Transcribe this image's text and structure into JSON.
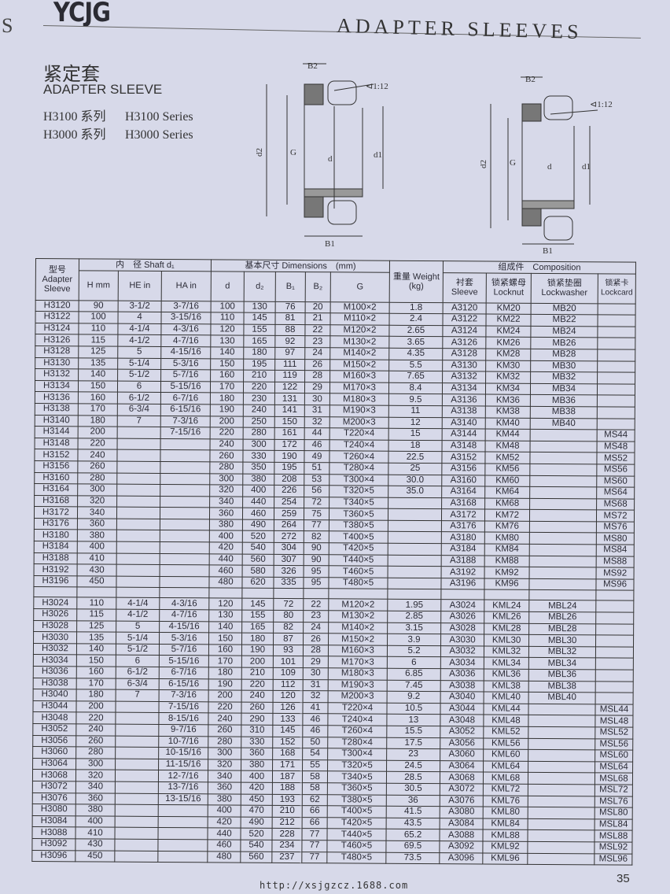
{
  "page": {
    "edge_letter": "S",
    "logo": "YCJG",
    "title": "ADAPTER SLEEVES",
    "cn_title": "紧定套",
    "en_title": "ADAPTER SLEEVE",
    "series": [
      {
        "cn": "H3100 系列",
        "en": "H3100 Series"
      },
      {
        "cn": "H3000 系列",
        "en": "H3000 Series"
      }
    ],
    "footer_url": "http://xsjgzcz.1688.com",
    "page_number": "35"
  },
  "diagram_labels": {
    "b2": "B2",
    "b1": "B1",
    "d2": "d2",
    "g": "G",
    "d": "d",
    "d1": "d1",
    "taper": "⊲1:12"
  },
  "table": {
    "headers": {
      "model": "型号 Adapter Sleeve",
      "shaft": "内　径 Shaft d₁",
      "h": "H mm",
      "he": "HE in",
      "ha": "HA in",
      "dimensions": "基本尺寸 Dimensions　(mm)",
      "d": "d",
      "d2": "d₂",
      "b1": "B₁",
      "b2": "B₂",
      "g": "G",
      "weight": "重量 Weight (kg)",
      "composition": "组成件　Composition",
      "sleeve": "衬套 Sleeve",
      "locknut": "锁紧螺母 Locknut",
      "lockwasher": "锁紧垫圈 Lockwasher",
      "lockcard": "锁紧卡 Lockcard"
    },
    "groups": [
      [
        [
          "H3120",
          "90",
          "3-1/2",
          "3-7/16",
          "100",
          "130",
          "76",
          "20",
          "M100×2",
          "1.8",
          "A3120",
          "KM20",
          "MB20",
          ""
        ],
        [
          "H3122",
          "100",
          "4",
          "3-15/16",
          "110",
          "145",
          "81",
          "21",
          "M110×2",
          "2.4",
          "A3122",
          "KM22",
          "MB22",
          ""
        ],
        [
          "H3124",
          "110",
          "4-1/4",
          "4-3/16",
          "120",
          "155",
          "88",
          "22",
          "M120×2",
          "2.65",
          "A3124",
          "KM24",
          "MB24",
          ""
        ],
        [
          "H3126",
          "115",
          "4-1/2",
          "4-7/16",
          "130",
          "165",
          "92",
          "23",
          "M130×2",
          "3.65",
          "A3126",
          "KM26",
          "MB26",
          ""
        ],
        [
          "H3128",
          "125",
          "5",
          "4-15/16",
          "140",
          "180",
          "97",
          "24",
          "M140×2",
          "4.35",
          "A3128",
          "KM28",
          "MB28",
          ""
        ],
        [
          "H3130",
          "135",
          "5-1/4",
          "5-3/16",
          "150",
          "195",
          "111",
          "26",
          "M150×2",
          "5.5",
          "A3130",
          "KM30",
          "MB30",
          ""
        ],
        [
          "H3132",
          "140",
          "5-1/2",
          "5-7/16",
          "160",
          "210",
          "119",
          "28",
          "M160×3",
          "7.65",
          "A3132",
          "KM32",
          "MB32",
          ""
        ],
        [
          "H3134",
          "150",
          "6",
          "5-15/16",
          "170",
          "220",
          "122",
          "29",
          "M170×3",
          "8.4",
          "A3134",
          "KM34",
          "MB34",
          ""
        ],
        [
          "H3136",
          "160",
          "6-1/2",
          "6-7/16",
          "180",
          "230",
          "131",
          "30",
          "M180×3",
          "9.5",
          "A3136",
          "KM36",
          "MB36",
          ""
        ],
        [
          "H3138",
          "170",
          "6-3/4",
          "6-15/16",
          "190",
          "240",
          "141",
          "31",
          "M190×3",
          "11",
          "A3138",
          "KM38",
          "MB38",
          ""
        ],
        [
          "H3140",
          "180",
          "7",
          "7-3/16",
          "200",
          "250",
          "150",
          "32",
          "M200×3",
          "12",
          "A3140",
          "KM40",
          "MB40",
          ""
        ],
        [
          "H3144",
          "200",
          "",
          "7-15/16",
          "220",
          "280",
          "161",
          "44",
          "T220×4",
          "15",
          "A3144",
          "KM44",
          "",
          "MS44"
        ],
        [
          "H3148",
          "220",
          "",
          "",
          "240",
          "300",
          "172",
          "46",
          "T240×4",
          "18",
          "A3148",
          "KM48",
          "",
          "MS48"
        ],
        [
          "H3152",
          "240",
          "",
          "",
          "260",
          "330",
          "190",
          "49",
          "T260×4",
          "22.5",
          "A3152",
          "KM52",
          "",
          "MS52"
        ],
        [
          "H3156",
          "260",
          "",
          "",
          "280",
          "350",
          "195",
          "51",
          "T280×4",
          "25",
          "A3156",
          "KM56",
          "",
          "MS56"
        ],
        [
          "H3160",
          "280",
          "",
          "",
          "300",
          "380",
          "208",
          "53",
          "T300×4",
          "30.0",
          "A3160",
          "KM60",
          "",
          "MS60"
        ],
        [
          "H3164",
          "300",
          "",
          "",
          "320",
          "400",
          "226",
          "56",
          "T320×5",
          "35.0",
          "A3164",
          "KM64",
          "",
          "MS64"
        ],
        [
          "H3168",
          "320",
          "",
          "",
          "340",
          "440",
          "254",
          "72",
          "T340×5",
          "",
          "A3168",
          "KM68",
          "",
          "MS68"
        ],
        [
          "H3172",
          "340",
          "",
          "",
          "360",
          "460",
          "259",
          "75",
          "T360×5",
          "",
          "A3172",
          "KM72",
          "",
          "MS72"
        ],
        [
          "H3176",
          "360",
          "",
          "",
          "380",
          "490",
          "264",
          "77",
          "T380×5",
          "",
          "A3176",
          "KM76",
          "",
          "MS76"
        ],
        [
          "H3180",
          "380",
          "",
          "",
          "400",
          "520",
          "272",
          "82",
          "T400×5",
          "",
          "A3180",
          "KM80",
          "",
          "MS80"
        ],
        [
          "H3184",
          "400",
          "",
          "",
          "420",
          "540",
          "304",
          "90",
          "T420×5",
          "",
          "A3184",
          "KM84",
          "",
          "MS84"
        ],
        [
          "H3188",
          "410",
          "",
          "",
          "440",
          "560",
          "307",
          "90",
          "T440×5",
          "",
          "A3188",
          "KM88",
          "",
          "MS88"
        ],
        [
          "H3192",
          "430",
          "",
          "",
          "460",
          "580",
          "326",
          "95",
          "T460×5",
          "",
          "A3192",
          "KM92",
          "",
          "MS92"
        ],
        [
          "H3196",
          "450",
          "",
          "",
          "480",
          "620",
          "335",
          "95",
          "T480×5",
          "",
          "A3196",
          "KM96",
          "",
          "MS96"
        ]
      ],
      [
        [
          "H3024",
          "110",
          "4-1/4",
          "4-3/16",
          "120",
          "145",
          "72",
          "22",
          "M120×2",
          "1.95",
          "A3024",
          "KML24",
          "MBL24",
          ""
        ],
        [
          "H3026",
          "115",
          "4-1/2",
          "4-7/16",
          "130",
          "155",
          "80",
          "23",
          "M130×2",
          "2.85",
          "A3026",
          "KML26",
          "MBL26",
          ""
        ],
        [
          "H3028",
          "125",
          "5",
          "4-15/16",
          "140",
          "165",
          "82",
          "24",
          "M140×2",
          "3.15",
          "A3028",
          "KML28",
          "MBL28",
          ""
        ],
        [
          "H3030",
          "135",
          "5-1/4",
          "5-3/16",
          "150",
          "180",
          "87",
          "26",
          "M150×2",
          "3.9",
          "A3030",
          "KML30",
          "MBL30",
          ""
        ],
        [
          "H3032",
          "140",
          "5-1/2",
          "5-7/16",
          "160",
          "190",
          "93",
          "28",
          "M160×3",
          "5.2",
          "A3032",
          "KML32",
          "MBL32",
          ""
        ],
        [
          "H3034",
          "150",
          "6",
          "5-15/16",
          "170",
          "200",
          "101",
          "29",
          "M170×3",
          "6",
          "A3034",
          "KML34",
          "MBL34",
          ""
        ],
        [
          "H3036",
          "160",
          "6-1/2",
          "6-7/16",
          "180",
          "210",
          "109",
          "30",
          "M180×3",
          "6.85",
          "A3036",
          "KML36",
          "MBL36",
          ""
        ],
        [
          "H3038",
          "170",
          "6-3/4",
          "6-15/16",
          "190",
          "220",
          "112",
          "31",
          "M190×3",
          "7.45",
          "A3038",
          "KML38",
          "MBL38",
          ""
        ],
        [
          "H3040",
          "180",
          "7",
          "7-3/16",
          "200",
          "240",
          "120",
          "32",
          "M200×3",
          "9.2",
          "A3040",
          "KML40",
          "MBL40",
          ""
        ],
        [
          "H3044",
          "200",
          "",
          "7-15/16",
          "220",
          "260",
          "126",
          "41",
          "T220×4",
          "10.5",
          "A3044",
          "KML44",
          "",
          "MSL44"
        ],
        [
          "H3048",
          "220",
          "",
          "8-15/16",
          "240",
          "290",
          "133",
          "46",
          "T240×4",
          "13",
          "A3048",
          "KML48",
          "",
          "MSL48"
        ],
        [
          "H3052",
          "240",
          "",
          "9-7/16",
          "260",
          "310",
          "145",
          "46",
          "T260×4",
          "15.5",
          "A3052",
          "KML52",
          "",
          "MSL52"
        ],
        [
          "H3056",
          "260",
          "",
          "10-7/16",
          "280",
          "330",
          "152",
          "50",
          "T280×4",
          "17.5",
          "A3056",
          "KML56",
          "",
          "MSL56"
        ],
        [
          "H3060",
          "280",
          "",
          "10-15/16",
          "300",
          "360",
          "168",
          "54",
          "T300×4",
          "23",
          "A3060",
          "KML60",
          "",
          "MSL60"
        ],
        [
          "H3064",
          "300",
          "",
          "11-15/16",
          "320",
          "380",
          "171",
          "55",
          "T320×5",
          "24.5",
          "A3064",
          "KML64",
          "",
          "MSL64"
        ],
        [
          "H3068",
          "320",
          "",
          "12-7/16",
          "340",
          "400",
          "187",
          "58",
          "T340×5",
          "28.5",
          "A3068",
          "KML68",
          "",
          "MSL68"
        ],
        [
          "H3072",
          "340",
          "",
          "13-7/16",
          "360",
          "420",
          "188",
          "58",
          "T360×5",
          "30.5",
          "A3072",
          "KML72",
          "",
          "MSL72"
        ],
        [
          "H3076",
          "360",
          "",
          "13-15/16",
          "380",
          "450",
          "193",
          "62",
          "T380×5",
          "36",
          "A3076",
          "KML76",
          "",
          "MSL76"
        ],
        [
          "H3080",
          "380",
          "",
          "",
          "400",
          "470",
          "210",
          "66",
          "T400×5",
          "41.5",
          "A3080",
          "KML80",
          "",
          "MSL80"
        ],
        [
          "H3084",
          "400",
          "",
          "",
          "420",
          "490",
          "212",
          "66",
          "T420×5",
          "43.5",
          "A3084",
          "KML84",
          "",
          "MSL84"
        ],
        [
          "H3088",
          "410",
          "",
          "",
          "440",
          "520",
          "228",
          "77",
          "T440×5",
          "65.2",
          "A3088",
          "KML88",
          "",
          "MSL88"
        ],
        [
          "H3092",
          "430",
          "",
          "",
          "460",
          "540",
          "234",
          "77",
          "T460×5",
          "69.5",
          "A3092",
          "KML92",
          "",
          "MSL92"
        ],
        [
          "H3096",
          "450",
          "",
          "",
          "480",
          "560",
          "237",
          "77",
          "T480×5",
          "73.5",
          "A3096",
          "KML96",
          "",
          "MSL96"
        ]
      ]
    ]
  }
}
